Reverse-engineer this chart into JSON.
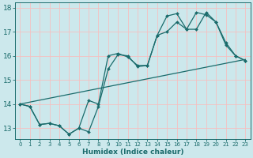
{
  "xlabel": "Humidex (Indice chaleur)",
  "xlim": [
    -0.5,
    23.5
  ],
  "ylim": [
    12.55,
    18.2
  ],
  "xticks": [
    0,
    1,
    2,
    3,
    4,
    5,
    6,
    7,
    8,
    9,
    10,
    11,
    12,
    13,
    14,
    15,
    16,
    17,
    18,
    19,
    20,
    21,
    22,
    23
  ],
  "yticks": [
    13,
    14,
    15,
    16,
    17,
    18
  ],
  "bg_color": "#cce8ec",
  "grid_color": "#f5c0c0",
  "line_color": "#1a6b6b",
  "line1_x": [
    0,
    1,
    2,
    3,
    4,
    5,
    6,
    7,
    8,
    9,
    10,
    11,
    12,
    13,
    14,
    15,
    16,
    17,
    18,
    19,
    20,
    21,
    22,
    23
  ],
  "line1_y": [
    14.0,
    13.9,
    13.15,
    13.2,
    13.1,
    12.75,
    13.0,
    12.85,
    13.9,
    15.45,
    16.05,
    16.0,
    15.55,
    15.6,
    16.85,
    17.65,
    17.75,
    17.1,
    17.8,
    17.7,
    17.4,
    16.55,
    16.0,
    15.8
  ],
  "line2_x": [
    0,
    1,
    2,
    3,
    4,
    5,
    6,
    7,
    8,
    9,
    10,
    11,
    12,
    13,
    14,
    15,
    16,
    17,
    18,
    19,
    20,
    21,
    22,
    23
  ],
  "line2_y": [
    14.0,
    13.9,
    13.15,
    13.2,
    13.1,
    12.75,
    13.0,
    14.15,
    14.0,
    16.0,
    16.1,
    15.95,
    15.6,
    15.6,
    16.85,
    17.0,
    17.4,
    17.1,
    17.1,
    17.8,
    17.4,
    16.45,
    16.0,
    15.8
  ],
  "line3_x": [
    0,
    23
  ],
  "line3_y": [
    14.0,
    15.85
  ]
}
